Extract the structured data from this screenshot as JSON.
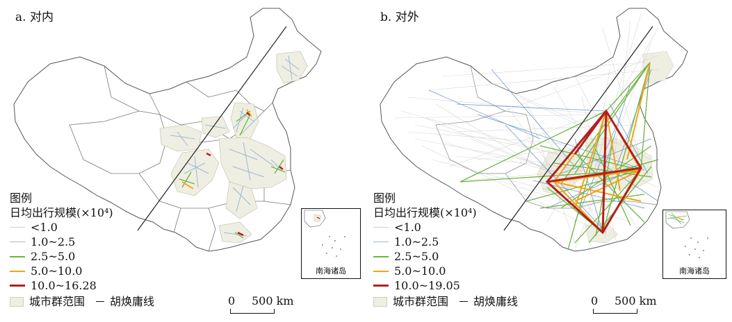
{
  "panels": [
    {
      "title": "a. 对内",
      "legend": {
        "heading": "图例",
        "subtitle": "日均出行规模(×10⁴)",
        "classes": [
          {
            "label": "<1.0",
            "color": "#cfcfcf"
          },
          {
            "label": "1.0~2.5",
            "color": "#9db8d6"
          },
          {
            "label": "2.5~5.0",
            "color": "#6db33f"
          },
          {
            "label": "5.0~10.0",
            "color": "#f2a21b"
          },
          {
            "label": "10.0~16.28",
            "color": "#b3201c"
          }
        ],
        "area_label": "城市群范围",
        "line_label": "胡焕庸线"
      },
      "scale": {
        "zero": "0",
        "value": "500 km"
      },
      "inset_label": "南海诸岛"
    },
    {
      "title": "b. 对外",
      "legend": {
        "heading": "图例",
        "subtitle": "日均出行规模(×10⁴)",
        "classes": [
          {
            "label": "<1.0",
            "color": "#cfcfcf"
          },
          {
            "label": "1.0~2.5",
            "color": "#9db8d6"
          },
          {
            "label": "2.5~5.0",
            "color": "#6db33f"
          },
          {
            "label": "5.0~10.0",
            "color": "#f2a21b"
          },
          {
            "label": "10.0~19.05",
            "color": "#b3201c"
          }
        ],
        "area_label": "城市群范围",
        "line_label": "胡焕庸线"
      },
      "scale": {
        "zero": "0",
        "value": "500 km"
      },
      "inset_label": "南海诸岛"
    }
  ],
  "colors": {
    "region_fill": "#efeee2",
    "border": "#555555"
  }
}
